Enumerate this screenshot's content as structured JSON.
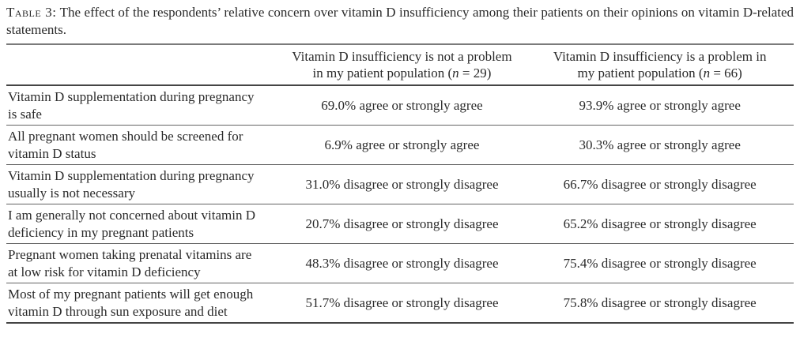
{
  "caption": {
    "label": "Table 3:",
    "text": "The effect of the respondents’ relative concern over vitamin D insufficiency among their patients on their opinions on vitamin D-related statements."
  },
  "table": {
    "headers": {
      "statement": "",
      "not_problem": {
        "line1": "Vitamin D insufficiency is not a problem",
        "line2_pre": "in my patient population (",
        "line2_var": "n",
        "line2_post": " = 29)"
      },
      "problem": {
        "line1": "Vitamin D insufficiency is a problem in",
        "line2_pre": "my patient population (",
        "line2_var": "n",
        "line2_post": " = 66)"
      }
    },
    "rows": [
      {
        "statement": "Vitamin D supplementation during pregnancy is safe",
        "not_problem": "69.0% agree or strongly agree",
        "problem": "93.9% agree or strongly agree"
      },
      {
        "statement": "All pregnant women should be screened for vitamin D status",
        "not_problem": "6.9% agree or strongly agree",
        "problem": "30.3% agree or strongly agree"
      },
      {
        "statement": "Vitamin D supplementation during pregnancy usually is not necessary",
        "not_problem": "31.0% disagree or strongly disagree",
        "problem": "66.7% disagree or strongly disagree"
      },
      {
        "statement": "I am generally not concerned about vitamin D deficiency in my pregnant patients",
        "not_problem": "20.7% disagree or strongly disagree",
        "problem": "65.2% disagree or strongly disagree"
      },
      {
        "statement": "Pregnant women taking prenatal vitamins are at low risk for vitamin D deficiency",
        "not_problem": "48.3% disagree or strongly disagree",
        "problem": "75.4% disagree or strongly disagree"
      },
      {
        "statement": "Most of my pregnant patients will get enough vitamin D through sun exposure and diet",
        "not_problem": "51.7% disagree or strongly disagree",
        "problem": "75.8% disagree or strongly disagree"
      }
    ]
  },
  "colors": {
    "background": "#ffffff",
    "text": "#2a2a2a",
    "rule_top": "#7b7b7b",
    "rule_heavy": "#454545",
    "rule_light": "#636363"
  }
}
